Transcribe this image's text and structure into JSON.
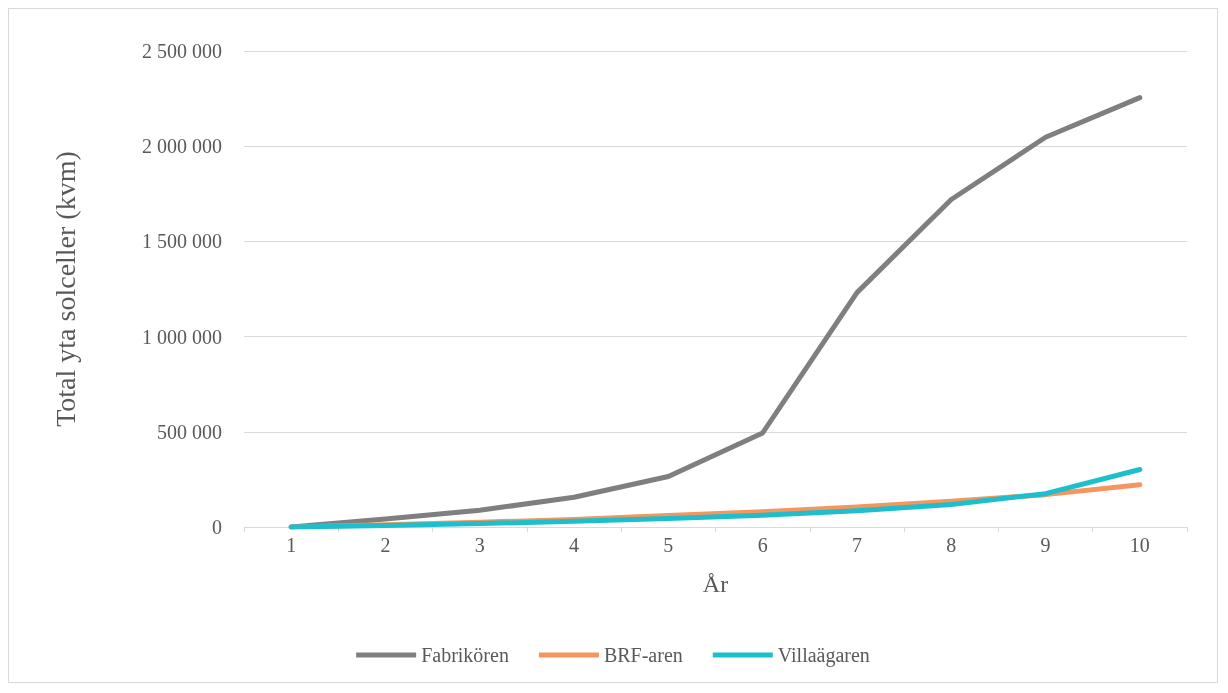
{
  "chart_data": {
    "type": "line",
    "xlabel": "År",
    "ylabel": "Total yta solceller (kvm)",
    "categories": [
      "1",
      "2",
      "3",
      "4",
      "5",
      "6",
      "7",
      "8",
      "9",
      "10"
    ],
    "series": [
      {
        "name": "Fabrikören",
        "color": "#7f7f7f",
        "values": [
          0,
          42000,
          88000,
          156000,
          265000,
          494000,
          1231000,
          1720000,
          2047000,
          2255000
        ]
      },
      {
        "name": "BRF-aren",
        "color": "#f4965e",
        "values": [
          0,
          12000,
          25000,
          40000,
          60000,
          80000,
          105000,
          135000,
          170000,
          222000
        ]
      },
      {
        "name": "Villaägaren",
        "color": "#1ebfcc",
        "values": [
          0,
          8000,
          18000,
          30000,
          45000,
          62000,
          85000,
          118000,
          175000,
          302000
        ]
      }
    ],
    "ylim": [
      0,
      2500000
    ],
    "yticks": [
      {
        "value": 0,
        "label": "0"
      },
      {
        "value": 500000,
        "label": "500 000"
      },
      {
        "value": 1000000,
        "label": "1 000 000"
      },
      {
        "value": 1500000,
        "label": "1 500 000"
      },
      {
        "value": 2000000,
        "label": "2 000 000"
      },
      {
        "value": 2500000,
        "label": "2 500 000"
      }
    ],
    "grid": "y",
    "legend": "bottom",
    "marker": "none",
    "line_style": "solid"
  }
}
